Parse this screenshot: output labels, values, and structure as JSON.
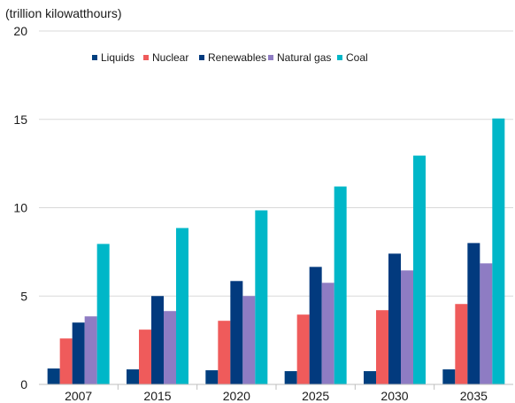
{
  "chart_data": {
    "type": "bar",
    "unit_label": "(trillion kilowatthours)",
    "categories": [
      "2007",
      "2015",
      "2020",
      "2025",
      "2030",
      "2035"
    ],
    "ylim": [
      0,
      20
    ],
    "yticks": [
      0,
      5,
      10,
      15,
      20
    ],
    "grid": true,
    "legend_position": "top",
    "series": [
      {
        "name": "Liquids",
        "color": "#003f7f",
        "values": [
          0.9,
          0.85,
          0.8,
          0.75,
          0.75,
          0.85
        ]
      },
      {
        "name": "Nuclear",
        "color": "#ef5b5b",
        "values": [
          2.6,
          3.1,
          3.6,
          3.95,
          4.2,
          4.55
        ]
      },
      {
        "name": "Renewables",
        "color": "#023a7e",
        "values": [
          3.5,
          5.0,
          5.85,
          6.65,
          7.4,
          8.0
        ]
      },
      {
        "name": "Natural gas",
        "color": "#8e7cc3",
        "values": [
          3.85,
          4.15,
          5.0,
          5.75,
          6.45,
          6.85
        ]
      },
      {
        "name": "Coal",
        "color": "#00b7c8",
        "values": [
          7.95,
          8.85,
          9.85,
          11.2,
          12.95,
          15.05
        ]
      }
    ]
  }
}
